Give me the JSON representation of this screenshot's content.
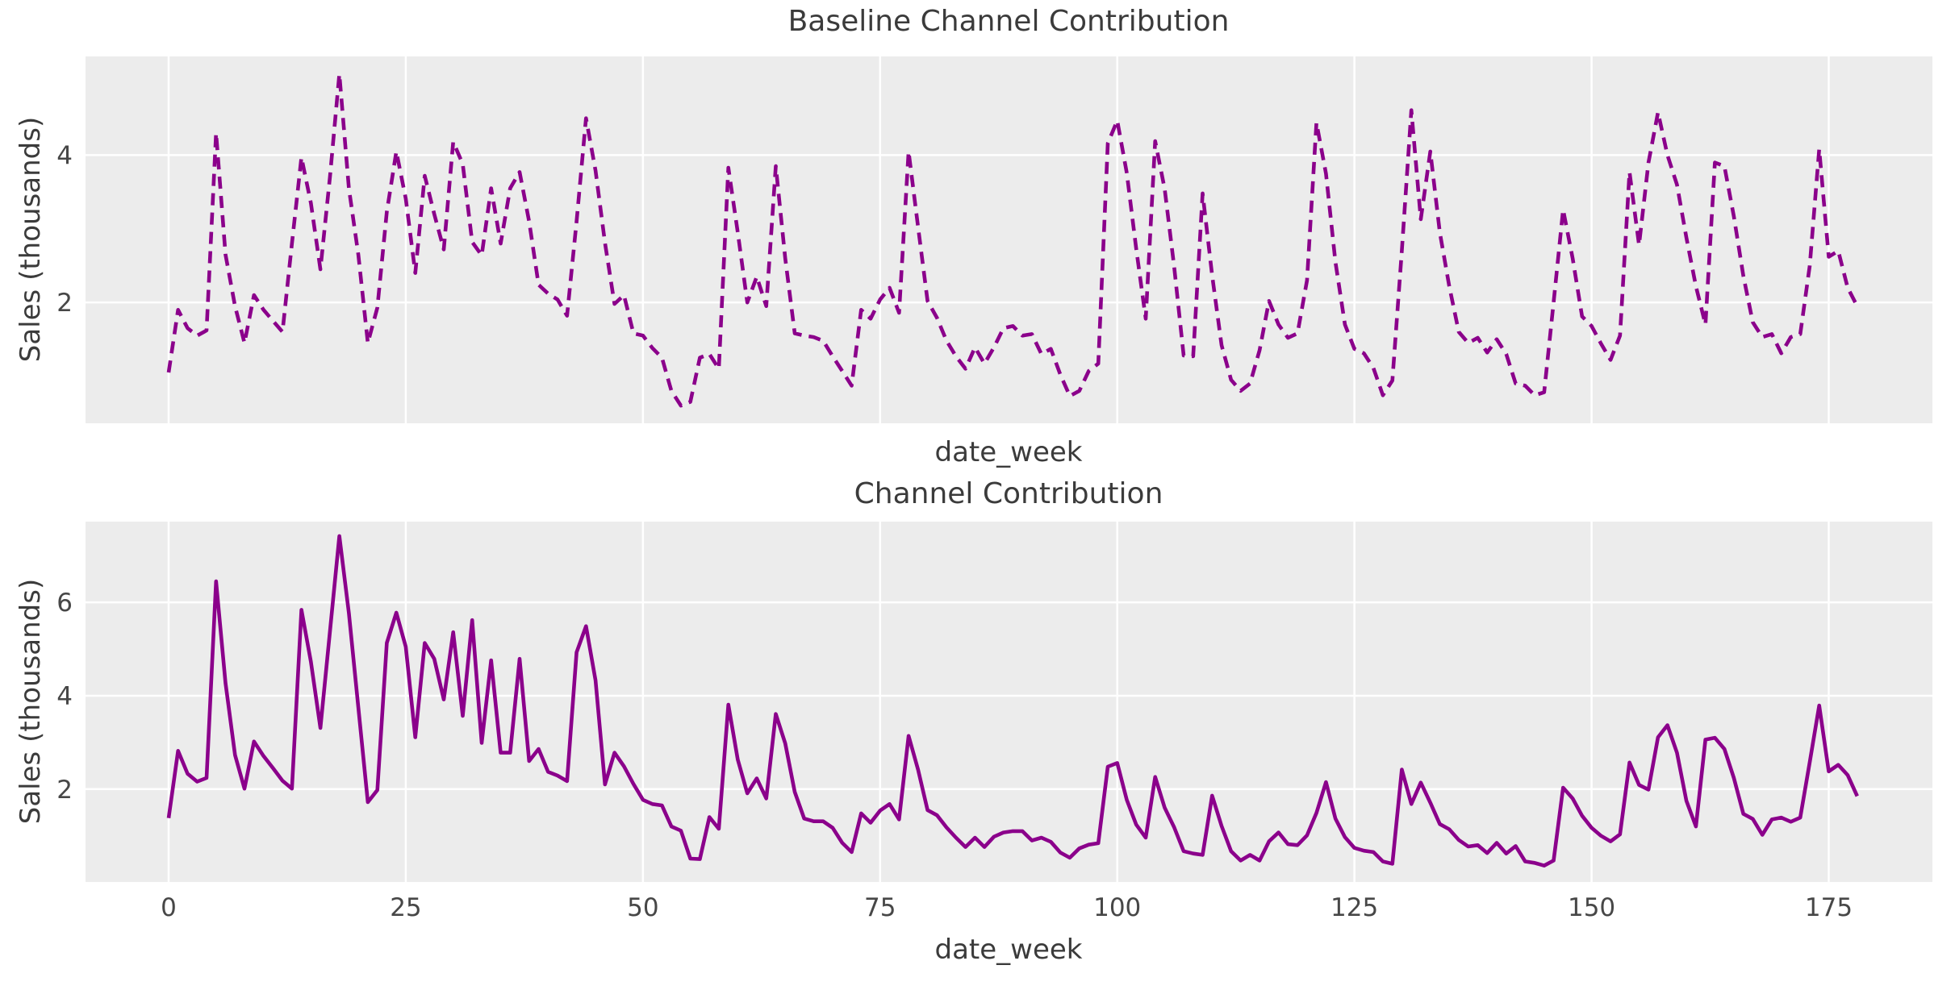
{
  "figure": {
    "background_color": "#ffffff",
    "plot_background_color": "#ececec",
    "gridline_color": "#ffffff",
    "line_color": "#8B008B",
    "text_color": "#3b3b3b",
    "tick_color": "#474747"
  },
  "chart_data": [
    {
      "type": "line",
      "title": "Baseline Channel Contribution",
      "xlabel": "date_week",
      "ylabel": "Sales (thousands)",
      "line_style": "dashed",
      "line_color": "#8B008B",
      "grid": true,
      "legend_position": "none",
      "xlim": [
        -8.76,
        185.93
      ],
      "ylim": [
        0.36,
        5.34
      ],
      "x_ticks": [
        0,
        25,
        50,
        75,
        100,
        125,
        150,
        175
      ],
      "x_tick_labels_visible": false,
      "y_ticks": [
        2,
        4
      ],
      "x_start_week": 0,
      "values": [
        1.05,
        1.9,
        1.65,
        1.55,
        1.62,
        4.3,
        2.65,
        1.95,
        1.45,
        2.1,
        1.9,
        1.75,
        1.6,
        2.8,
        3.97,
        3.35,
        2.45,
        3.7,
        5.1,
        3.55,
        2.65,
        1.45,
        1.93,
        3.23,
        4.05,
        3.41,
        2.4,
        3.72,
        3.2,
        2.72,
        4.18,
        3.88,
        2.82,
        2.64,
        3.55,
        2.8,
        3.55,
        3.77,
        3.1,
        2.24,
        2.12,
        2.04,
        1.82,
        3.1,
        4.5,
        3.79,
        2.81,
        1.98,
        2.1,
        1.58,
        1.55,
        1.38,
        1.25,
        0.8,
        0.6,
        0.65,
        1.25,
        1.3,
        1.1,
        3.83,
        2.95,
        2.0,
        2.35,
        1.95,
        3.85,
        2.6,
        1.58,
        1.55,
        1.53,
        1.48,
        1.27,
        1.07,
        0.87,
        1.9,
        1.78,
        2.04,
        2.2,
        1.86,
        4.05,
        3.03,
        2.02,
        1.79,
        1.48,
        1.27,
        1.1,
        1.39,
        1.17,
        1.39,
        1.65,
        1.68,
        1.55,
        1.57,
        1.3,
        1.37,
        1.02,
        0.73,
        0.8,
        1.07,
        1.17,
        4.16,
        4.47,
        3.76,
        2.73,
        1.78,
        4.19,
        3.54,
        2.48,
        1.28,
        1.27,
        3.48,
        2.37,
        1.42,
        0.95,
        0.8,
        0.9,
        1.35,
        2.02,
        1.7,
        1.52,
        1.58,
        2.3,
        4.44,
        3.75,
        2.55,
        1.7,
        1.37,
        1.31,
        1.11,
        0.74,
        0.94,
        2.7,
        4.61,
        3.13,
        4.05,
        2.95,
        2.22,
        1.6,
        1.45,
        1.52,
        1.32,
        1.5,
        1.3,
        0.9,
        0.87,
        0.74,
        0.78,
        2.0,
        3.26,
        2.6,
        1.81,
        1.68,
        1.44,
        1.22,
        1.55,
        3.77,
        2.78,
        3.9,
        4.58,
        4.0,
        3.6,
        2.88,
        2.22,
        1.7,
        3.9,
        3.85,
        3.17,
        2.36,
        1.73,
        1.53,
        1.57,
        1.31,
        1.53,
        1.57,
        2.5,
        4.08,
        2.62,
        2.7,
        2.2,
        1.95
      ]
    },
    {
      "type": "line",
      "title": "Channel Contribution",
      "xlabel": "date_week",
      "ylabel": "Sales (thousands)",
      "line_style": "solid",
      "line_color": "#8B008B",
      "grid": true,
      "legend_position": "none",
      "xlim": [
        -8.76,
        185.93
      ],
      "ylim": [
        0.01,
        7.73
      ],
      "x_ticks": [
        0,
        25,
        50,
        75,
        100,
        125,
        150,
        175
      ],
      "x_tick_labels_visible": true,
      "y_ticks": [
        2,
        4,
        6
      ],
      "x_start_week": 0,
      "values": [
        1.38,
        2.82,
        2.33,
        2.16,
        2.24,
        6.45,
        4.27,
        2.73,
        2.01,
        3.02,
        2.71,
        2.45,
        2.18,
        2.01,
        5.84,
        4.73,
        3.31,
        5.37,
        7.42,
        5.77,
        3.75,
        1.72,
        1.98,
        5.13,
        5.78,
        5.05,
        3.11,
        5.13,
        4.79,
        3.92,
        5.36,
        3.57,
        5.62,
        2.99,
        4.76,
        2.78,
        2.78,
        4.79,
        2.6,
        2.86,
        2.37,
        2.29,
        2.17,
        4.93,
        5.49,
        4.33,
        2.1,
        2.78,
        2.49,
        2.11,
        1.77,
        1.68,
        1.65,
        1.2,
        1.11,
        0.51,
        0.5,
        1.4,
        1.15,
        3.81,
        2.63,
        1.91,
        2.23,
        1.8,
        3.61,
        2.98,
        1.94,
        1.37,
        1.31,
        1.31,
        1.17,
        0.85,
        0.65,
        1.48,
        1.28,
        1.54,
        1.68,
        1.35,
        3.14,
        2.42,
        1.55,
        1.44,
        1.18,
        0.96,
        0.76,
        0.96,
        0.76,
        0.98,
        1.07,
        1.1,
        1.1,
        0.9,
        0.96,
        0.87,
        0.64,
        0.53,
        0.73,
        0.81,
        0.84,
        2.48,
        2.56,
        1.77,
        1.24,
        0.96,
        2.26,
        1.6,
        1.18,
        0.67,
        0.62,
        0.59,
        1.86,
        1.21,
        0.67,
        0.47,
        0.59,
        0.47,
        0.88,
        1.07,
        0.82,
        0.8,
        1.01,
        1.49,
        2.15,
        1.37,
        0.97,
        0.74,
        0.68,
        0.65,
        0.45,
        0.4,
        2.42,
        1.68,
        2.14,
        1.71,
        1.25,
        1.14,
        0.91,
        0.77,
        0.8,
        0.63,
        0.85,
        0.62,
        0.78,
        0.45,
        0.42,
        0.36,
        0.47,
        2.03,
        1.8,
        1.43,
        1.17,
        1.0,
        0.88,
        1.03,
        2.57,
        2.09,
        1.99,
        3.11,
        3.37,
        2.78,
        1.75,
        1.2,
        3.06,
        3.1,
        2.86,
        2.24,
        1.47,
        1.36,
        1.02,
        1.35,
        1.39,
        1.3,
        1.39,
        2.58,
        3.79,
        2.38,
        2.52,
        2.3,
        1.85
      ]
    }
  ]
}
